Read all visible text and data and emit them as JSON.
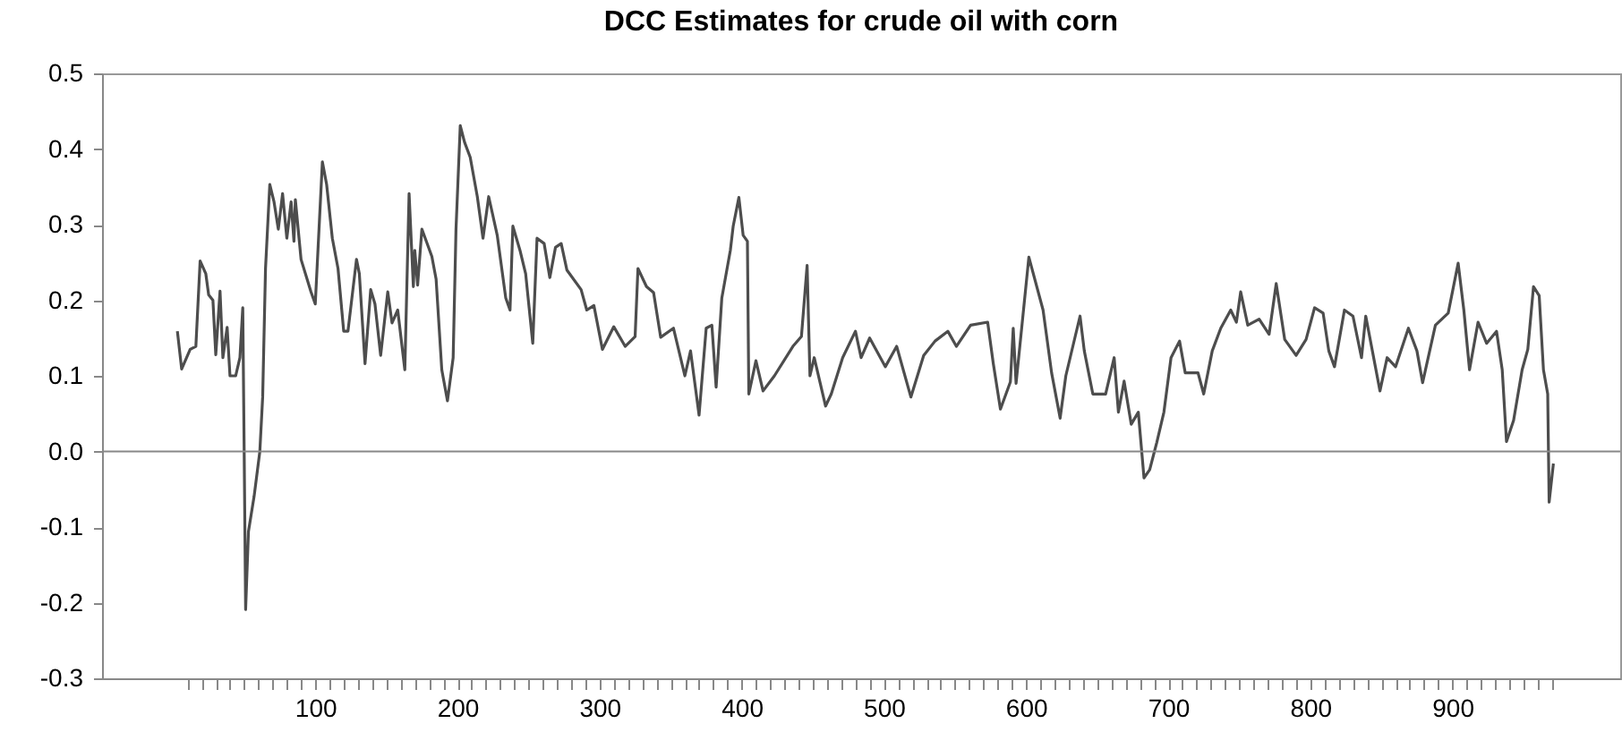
{
  "chart_data": {
    "type": "line",
    "title": "DCC Estimates for crude oil with corn",
    "x": [
      3,
      6,
      12,
      16,
      19,
      23,
      25,
      28,
      30,
      33,
      35,
      38,
      40,
      44,
      47,
      49,
      50,
      51,
      53,
      57,
      61,
      63,
      65,
      68,
      71,
      74,
      77,
      80,
      83,
      85,
      86,
      90,
      97,
      100,
      105,
      108,
      112,
      116,
      120,
      123,
      129,
      131,
      135,
      139,
      142,
      146,
      151,
      154,
      158,
      163,
      166,
      169,
      170,
      172,
      175,
      182,
      185,
      189,
      193,
      197,
      199,
      202,
      205,
      209,
      214,
      218,
      222,
      228,
      234,
      237,
      239,
      244,
      248,
      253,
      256,
      261,
      265,
      269,
      273,
      277,
      287,
      291,
      296,
      302,
      310,
      318,
      325,
      327,
      333,
      338,
      343,
      352,
      360,
      364,
      370,
      375,
      379,
      382,
      386,
      392,
      394,
      398,
      401,
      404,
      405,
      410,
      415,
      423,
      436,
      442,
      446,
      448,
      451,
      459,
      463,
      471,
      480,
      484,
      490,
      501,
      509,
      519,
      528,
      536,
      545,
      551,
      561,
      573,
      577,
      582,
      589,
      591,
      593,
      602,
      612,
      618,
      624,
      628,
      638,
      641,
      647,
      656,
      662,
      665,
      669,
      674,
      679,
      683,
      687,
      692,
      697,
      702,
      708,
      712,
      721,
      725,
      731,
      737,
      744,
      748,
      751,
      756,
      764,
      771,
      776,
      782,
      790,
      797,
      803,
      809,
      813,
      817,
      824,
      830,
      836,
      839,
      849,
      854,
      860,
      869,
      875,
      879,
      888,
      897,
      904,
      908,
      912,
      918,
      924,
      931,
      935,
      938,
      943,
      949,
      953,
      957,
      961,
      964,
      967,
      968,
      971
    ],
    "series": [
      {
        "color": "#4d4d4d",
        "values": [
          0.159,
          0.109,
          0.135,
          0.139,
          0.252,
          0.235,
          0.207,
          0.2,
          0.128,
          0.212,
          0.124,
          0.164,
          0.1,
          0.1,
          0.124,
          0.19,
          -0.003,
          -0.209,
          -0.106,
          -0.059,
          0.0,
          0.072,
          0.242,
          0.353,
          0.33,
          0.294,
          0.341,
          0.282,
          0.33,
          0.278,
          0.333,
          0.254,
          0.211,
          0.195,
          0.383,
          0.353,
          0.282,
          0.242,
          0.159,
          0.159,
          0.254,
          0.235,
          0.116,
          0.214,
          0.195,
          0.127,
          0.211,
          0.17,
          0.187,
          0.108,
          0.341,
          0.218,
          0.266,
          0.22,
          0.294,
          0.258,
          0.228,
          0.108,
          0.067,
          0.124,
          0.294,
          0.431,
          0.409,
          0.389,
          0.337,
          0.282,
          0.337,
          0.286,
          0.203,
          0.187,
          0.298,
          0.266,
          0.235,
          0.143,
          0.282,
          0.275,
          0.23,
          0.27,
          0.275,
          0.24,
          0.214,
          0.187,
          0.193,
          0.135,
          0.165,
          0.139,
          0.152,
          0.242,
          0.218,
          0.21,
          0.151,
          0.163,
          0.1,
          0.133,
          0.048,
          0.163,
          0.167,
          0.085,
          0.203,
          0.266,
          0.298,
          0.336,
          0.286,
          0.278,
          0.076,
          0.12,
          0.08,
          0.1,
          0.139,
          0.152,
          0.246,
          0.1,
          0.124,
          0.06,
          0.076,
          0.124,
          0.159,
          0.124,
          0.15,
          0.112,
          0.139,
          0.072,
          0.127,
          0.146,
          0.159,
          0.139,
          0.167,
          0.171,
          0.116,
          0.056,
          0.092,
          0.163,
          0.09,
          0.257,
          0.187,
          0.104,
          0.044,
          0.1,
          0.179,
          0.133,
          0.076,
          0.076,
          0.124,
          0.052,
          0.093,
          0.036,
          0.052,
          -0.035,
          -0.024,
          0.012,
          0.052,
          0.124,
          0.146,
          0.104,
          0.104,
          0.076,
          0.133,
          0.163,
          0.187,
          0.171,
          0.211,
          0.167,
          0.175,
          0.155,
          0.222,
          0.148,
          0.127,
          0.148,
          0.19,
          0.183,
          0.133,
          0.112,
          0.187,
          0.179,
          0.124,
          0.179,
          0.08,
          0.124,
          0.112,
          0.163,
          0.133,
          0.091,
          0.167,
          0.183,
          0.249,
          0.187,
          0.108,
          0.171,
          0.143,
          0.159,
          0.108,
          0.013,
          0.041,
          0.108,
          0.135,
          0.218,
          0.206,
          0.108,
          0.076,
          -0.067,
          -0.016
        ]
      }
    ],
    "xlim": [
      -50,
      1018
    ],
    "xticks": [
      {
        "value": 10,
        "label": null
      },
      {
        "value": 20,
        "label": null
      },
      {
        "value": 30,
        "label": null
      },
      {
        "value": 40,
        "label": null
      },
      {
        "value": 50,
        "label": null
      },
      {
        "value": 60,
        "label": null
      },
      {
        "value": 70,
        "label": null
      },
      {
        "value": 80,
        "label": null
      },
      {
        "value": 90,
        "label": null
      },
      100,
      {
        "value": 110,
        "label": null
      },
      {
        "value": 120,
        "label": null
      },
      {
        "value": 130,
        "label": null
      },
      {
        "value": 140,
        "label": null
      },
      {
        "value": 150,
        "label": null
      },
      {
        "value": 160,
        "label": null
      },
      {
        "value": 170,
        "label": null
      },
      {
        "value": 180,
        "label": null
      },
      {
        "value": 190,
        "label": null
      },
      200,
      {
        "value": 210,
        "label": null
      },
      {
        "value": 220,
        "label": null
      },
      {
        "value": 230,
        "label": null
      },
      {
        "value": 240,
        "label": null
      },
      {
        "value": 250,
        "label": null
      },
      {
        "value": 260,
        "label": null
      },
      {
        "value": 270,
        "label": null
      },
      {
        "value": 280,
        "label": null
      },
      {
        "value": 290,
        "label": null
      },
      300,
      {
        "value": 310,
        "label": null
      },
      {
        "value": 320,
        "label": null
      },
      {
        "value": 330,
        "label": null
      },
      {
        "value": 340,
        "label": null
      },
      {
        "value": 350,
        "label": null
      },
      {
        "value": 360,
        "label": null
      },
      {
        "value": 370,
        "label": null
      },
      {
        "value": 380,
        "label": null
      },
      {
        "value": 390,
        "label": null
      },
      400,
      {
        "value": 410,
        "label": null
      },
      {
        "value": 420,
        "label": null
      },
      {
        "value": 430,
        "label": null
      },
      {
        "value": 440,
        "label": null
      },
      {
        "value": 450,
        "label": null
      },
      {
        "value": 460,
        "label": null
      },
      {
        "value": 470,
        "label": null
      },
      {
        "value": 480,
        "label": null
      },
      {
        "value": 490,
        "label": null
      },
      500,
      {
        "value": 510,
        "label": null
      },
      {
        "value": 520,
        "label": null
      },
      {
        "value": 530,
        "label": null
      },
      {
        "value": 540,
        "label": null
      },
      {
        "value": 550,
        "label": null
      },
      {
        "value": 560,
        "label": null
      },
      {
        "value": 570,
        "label": null
      },
      {
        "value": 580,
        "label": null
      },
      {
        "value": 590,
        "label": null
      },
      600,
      {
        "value": 610,
        "label": null
      },
      {
        "value": 620,
        "label": null
      },
      {
        "value": 630,
        "label": null
      },
      {
        "value": 640,
        "label": null
      },
      {
        "value": 650,
        "label": null
      },
      {
        "value": 660,
        "label": null
      },
      {
        "value": 670,
        "label": null
      },
      {
        "value": 680,
        "label": null
      },
      {
        "value": 690,
        "label": null
      },
      700,
      {
        "value": 710,
        "label": null
      },
      {
        "value": 720,
        "label": null
      },
      {
        "value": 730,
        "label": null
      },
      {
        "value": 740,
        "label": null
      },
      {
        "value": 750,
        "label": null
      },
      {
        "value": 760,
        "label": null
      },
      {
        "value": 770,
        "label": null
      },
      {
        "value": 780,
        "label": null
      },
      {
        "value": 790,
        "label": null
      },
      800,
      {
        "value": 810,
        "label": null
      },
      {
        "value": 820,
        "label": null
      },
      {
        "value": 830,
        "label": null
      },
      {
        "value": 840,
        "label": null
      },
      {
        "value": 850,
        "label": null
      },
      {
        "value": 860,
        "label": null
      },
      {
        "value": 870,
        "label": null
      },
      {
        "value": 880,
        "label": null
      },
      {
        "value": 890,
        "label": null
      },
      900,
      {
        "value": 910,
        "label": null
      },
      {
        "value": 920,
        "label": null
      },
      {
        "value": 930,
        "label": null
      },
      {
        "value": 940,
        "label": null
      },
      {
        "value": 950,
        "label": null
      },
      {
        "value": 960,
        "label": null
      },
      {
        "value": 970,
        "label": null
      }
    ],
    "ylim": [
      -0.3,
      0.5
    ],
    "yticks": [
      {
        "value": -0.3,
        "label": "-0.3"
      },
      {
        "value": -0.2,
        "label": "-0.2"
      },
      {
        "value": -0.1,
        "label": "-0.1"
      },
      {
        "value": 0,
        "label": "0.0"
      },
      {
        "value": 0.1,
        "label": "0.1"
      },
      {
        "value": 0.2,
        "label": "0.2"
      },
      {
        "value": 0.3,
        "label": "0.3"
      },
      {
        "value": 0.4,
        "label": "0.4"
      },
      {
        "value": 0.5,
        "label": "0.5"
      }
    ],
    "ref_lines": [
      {
        "axis": "y",
        "value": 0,
        "color": "#888888"
      }
    ]
  }
}
